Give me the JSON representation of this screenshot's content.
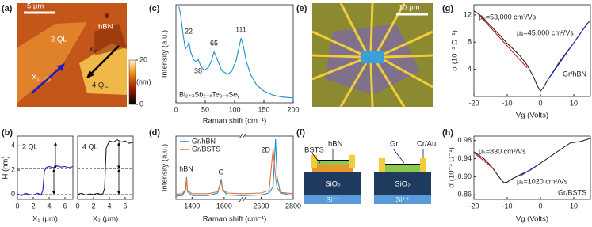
{
  "panel_labels": [
    "(a)",
    "(b)",
    "(c)",
    "(d)",
    "(e)",
    "(f)",
    "(g)",
    "(h)"
  ],
  "panel_a": {
    "scale_bar": "5 μm",
    "labels": [
      "2 QL",
      "hBN",
      "X₂",
      "X₁",
      "4 QL"
    ],
    "colorbar_ticks": [
      0,
      20
    ],
    "colorbar_unit": "(nm)"
  },
  "panel_e": {
    "scale_bar": "10 μm"
  },
  "panel_f": {
    "bsts": "BSTS",
    "hbn": "hBN",
    "gr": "Gr",
    "contact": "Cr/Au",
    "oxide": "SiO₂",
    "substrate": "Si⁺⁺"
  },
  "chart_data": [
    {
      "type": "line",
      "xlabel": "Raman shift (cm⁻¹)",
      "ylabel": "Intensity (a.u.)",
      "xlim": [
        0,
        200
      ],
      "ylim": [
        0,
        1
      ],
      "xticks": [
        0,
        50,
        100,
        150,
        200
      ],
      "series": [
        {
          "color": "#1f8fc8",
          "x": [
            5,
            8,
            12,
            16,
            20,
            22,
            25,
            30,
            34,
            38,
            42,
            48,
            55,
            60,
            65,
            70,
            78,
            88,
            95,
            102,
            107,
            111,
            115,
            120,
            128,
            138,
            150,
            165,
            180,
            200
          ],
          "values": [
            0.98,
            0.9,
            0.7,
            0.55,
            0.58,
            0.62,
            0.52,
            0.44,
            0.42,
            0.44,
            0.38,
            0.33,
            0.36,
            0.42,
            0.52,
            0.45,
            0.33,
            0.29,
            0.32,
            0.42,
            0.55,
            0.66,
            0.58,
            0.42,
            0.28,
            0.18,
            0.12,
            0.08,
            0.06,
            0.05
          ]
        }
      ],
      "annotations": [
        {
          "text": "22",
          "color": "#222"
        },
        {
          "text": "38",
          "color": "#222"
        },
        {
          "text": "65",
          "color": "#222"
        },
        {
          "text": "111",
          "color": "#222"
        },
        {
          "text": "Bi₂₊ₓSb₂₋ₓTe₃₋ᵧSeᵧ",
          "color": "#222"
        }
      ]
    },
    {
      "type": "line",
      "xlabel": "Vg (Volts)",
      "ylabel": "σ (10⁻³ Ω⁻¹)",
      "xlim": [
        -20,
        15
      ],
      "ylim": [
        0,
        13.5
      ],
      "xticks": [
        -20,
        -10,
        0,
        10
      ],
      "yticks": [
        4,
        8,
        12
      ],
      "series": [
        {
          "color": "#222222",
          "x": [
            -20,
            -18,
            -16,
            -14,
            -12,
            -10,
            -8,
            -6,
            -4,
            -2,
            -1,
            0,
            1,
            2,
            4,
            6,
            8,
            10,
            12,
            14,
            15
          ],
          "values": [
            12.6,
            11.9,
            10.9,
            9.9,
            8.9,
            7.8,
            6.9,
            5.9,
            4.6,
            2.8,
            1.6,
            0.8,
            1.4,
            2.3,
            3.8,
            5.3,
            6.6,
            7.9,
            9.3,
            10.7,
            11.2
          ]
        },
        {
          "color": "#d62020",
          "x": [
            -19,
            -4
          ],
          "values": [
            12.3,
            4.2
          ]
        },
        {
          "color": "#2030c0",
          "x": [
            2,
            14
          ],
          "values": [
            2.3,
            10.7
          ]
        }
      ],
      "annotations": [
        {
          "text": "μₕ=53,000 cm²/Vs",
          "color": "#d62020"
        },
        {
          "text": "μₑ=45,000 cm²/Vs",
          "color": "#2030c0"
        },
        {
          "text": "Gr/hBN",
          "color": "#222"
        }
      ]
    },
    {
      "type": "line",
      "xlabel": "X₁ (μm)",
      "ylabel": "H (nm)",
      "xlim": [
        0,
        7
      ],
      "ylim": [
        -0.4,
        4.8
      ],
      "xticks": [
        0,
        2,
        4,
        6
      ],
      "yticks": [
        0,
        2,
        4
      ],
      "hlines": [
        0,
        2.1
      ],
      "series": [
        {
          "color": "#1a1ad0",
          "x": [
            0,
            0.5,
            1,
            1.5,
            2,
            2.5,
            3,
            3.2,
            3.4,
            3.6,
            4,
            4.5,
            5,
            5.5,
            6,
            6.5,
            7
          ],
          "values": [
            0.05,
            -0.1,
            0.1,
            0,
            -0.05,
            0.1,
            0,
            0.3,
            1.9,
            2.2,
            2.3,
            2.2,
            2.35,
            2.25,
            2.3,
            2.2,
            2.3
          ]
        }
      ],
      "annotations": [
        {
          "text": "2 QL",
          "color": "#1a1ad0"
        }
      ]
    },
    {
      "type": "line",
      "xlabel": "X₂ (μm)",
      "xlim": [
        0,
        7
      ],
      "ylim": [
        -0.4,
        4.8
      ],
      "xticks": [
        0,
        2,
        4,
        6
      ],
      "hlines": [
        0,
        2.1,
        4.3
      ],
      "series": [
        {
          "color": "#222222",
          "x": [
            0,
            0.5,
            1,
            1.5,
            2,
            2.5,
            3,
            3.2,
            3.4,
            3.6,
            4,
            4.5,
            5,
            5.5,
            6,
            6.5,
            7
          ],
          "values": [
            0,
            0.1,
            -0.05,
            0.05,
            0,
            0.1,
            0,
            0.1,
            0.5,
            3.8,
            4.4,
            4.3,
            4.5,
            4.3,
            4.4,
            4.2,
            4.3
          ]
        }
      ],
      "annotations": [
        {
          "text": "4 QL",
          "color": "#222"
        }
      ]
    },
    {
      "type": "line",
      "xlabel": "Raman shift (cm⁻¹)",
      "ylabel": "Intensity (a.u.)",
      "xlim": [
        1300,
        2800
      ],
      "xbreak": [
        1700,
        2500
      ],
      "ylim": [
        0,
        1
      ],
      "xticks": [
        1400,
        1600,
        2600,
        2800
      ],
      "legend": "upper left",
      "series": [
        {
          "name": "Gr/hBN",
          "color": "#1f8fc8",
          "x": [
            1300,
            1340,
            1360,
            1366,
            1372,
            1400,
            1500,
            1560,
            1575,
            1582,
            1590,
            1620,
            1700,
            2500,
            2600,
            2650,
            2675,
            2690,
            2700,
            2720,
            2800
          ],
          "values": [
            0.05,
            0.06,
            0.15,
            0.35,
            0.12,
            0.06,
            0.06,
            0.1,
            0.25,
            0.32,
            0.15,
            0.07,
            0.06,
            0.06,
            0.07,
            0.1,
            0.2,
            0.95,
            0.35,
            0.1,
            0.06
          ]
        },
        {
          "name": "Gr/BSTS",
          "color": "#e0703a",
          "x": [
            1300,
            1340,
            1360,
            1366,
            1372,
            1400,
            1500,
            1560,
            1575,
            1582,
            1590,
            1620,
            1700,
            2500,
            2600,
            2650,
            2675,
            2690,
            2700,
            2720,
            2800
          ],
          "values": [
            0.08,
            0.09,
            0.16,
            0.33,
            0.14,
            0.09,
            0.09,
            0.12,
            0.22,
            0.28,
            0.16,
            0.1,
            0.09,
            0.09,
            0.1,
            0.14,
            0.8,
            0.35,
            0.18,
            0.11,
            0.09
          ]
        }
      ],
      "annotations": [
        {
          "text": "hBN",
          "color": "#222"
        },
        {
          "text": "G",
          "color": "#222"
        },
        {
          "text": "2D",
          "color": "#222"
        }
      ]
    },
    {
      "type": "line",
      "xlabel": "Vg (Volts)",
      "ylabel": "σ (10⁻³ Ω⁻¹)",
      "xlim": [
        -20,
        15
      ],
      "ylim": [
        0.85,
        0.99
      ],
      "xticks": [
        -20,
        -10,
        0,
        10
      ],
      "yticks": [
        0.86,
        {
          "value": 0.9,
          "label": "0.90"
        },
        0.94,
        0.98
      ],
      "series": [
        {
          "color": "#222222",
          "x": [
            -20,
            -17,
            -15,
            -13,
            -12,
            -11,
            -10,
            -9,
            -6,
            -3,
            0,
            3,
            6,
            9,
            12,
            15
          ],
          "values": [
            0.955,
            0.94,
            0.925,
            0.905,
            0.895,
            0.887,
            0.888,
            0.893,
            0.905,
            0.915,
            0.93,
            0.945,
            0.96,
            0.975,
            0.978,
            0.985
          ]
        },
        {
          "color": "#d62020",
          "x": [
            -20,
            -14
          ],
          "values": [
            0.953,
            0.917
          ]
        },
        {
          "color": "#2030c0",
          "x": [
            -6,
            0
          ],
          "values": [
            0.902,
            0.93
          ]
        }
      ],
      "annotations": [
        {
          "text": "μₕ=830 cm²/Vs",
          "color": "#d62020"
        },
        {
          "text": "μₑ=1020 cm²/Vs",
          "color": "#2030c0"
        },
        {
          "text": "Gr/BSTS",
          "color": "#222"
        }
      ]
    }
  ]
}
